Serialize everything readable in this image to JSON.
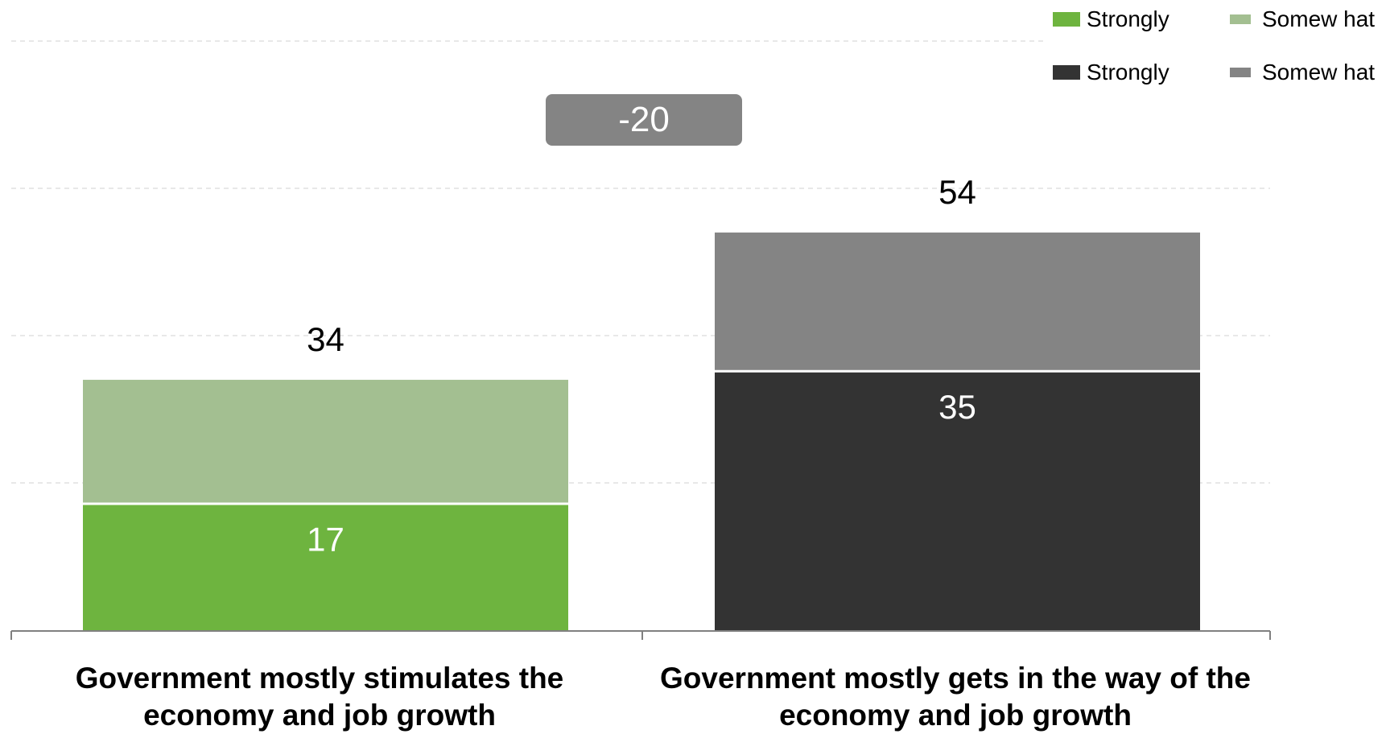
{
  "chart_data": {
    "type": "bar",
    "stacked": true,
    "categories": [
      "Government mostly stimulates the economy and job growth",
      "Government mostly gets in the way of the economy and job growth"
    ],
    "segments": [
      [
        {
          "name": "Strongly",
          "value": 17,
          "color": "#6EB43F",
          "label": "17"
        },
        {
          "name": "Somewhat",
          "value": 17,
          "color": "#A3BF91",
          "label": ""
        }
      ],
      [
        {
          "name": "Strongly",
          "value": 35,
          "color": "#333333",
          "label": "35"
        },
        {
          "name": "Somewhat",
          "value": 19,
          "color": "#848484",
          "label": ""
        }
      ]
    ],
    "totals": [
      "34",
      "54"
    ],
    "difference_label": "-20",
    "ylim": [
      0,
      70
    ],
    "gridlines": [
      20,
      40,
      60,
      80
    ],
    "grid": true,
    "legend": {
      "placement": "top-right",
      "entries": [
        {
          "label": "Strongly",
          "color": "#6EB43F"
        },
        {
          "label": "Somew hat",
          "color": "#A3BF91"
        },
        {
          "label": "Strongly",
          "color": "#333333"
        },
        {
          "label": "Somew hat",
          "color": "#848484"
        }
      ]
    },
    "colors": {
      "strongly_positive": "#6EB43F",
      "somewhat_positive": "#A3BF91",
      "strongly_negative": "#333333",
      "somewhat_negative": "#848484",
      "badge": "#848484"
    }
  }
}
